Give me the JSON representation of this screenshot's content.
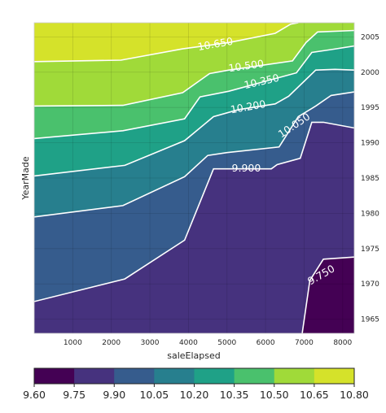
{
  "chart_data": {
    "type": "contour",
    "xlabel": "saleElapsed",
    "ylabel": "YearMade",
    "xlim": [
      0,
      8300
    ],
    "ylim": [
      1963,
      2007
    ],
    "x_ticks": [
      1000,
      2000,
      3000,
      4000,
      5000,
      6000,
      7000,
      8000
    ],
    "y_ticks": [
      1965,
      1970,
      1975,
      1980,
      1985,
      1990,
      1995,
      2000,
      2005
    ],
    "grid": true,
    "colormap": "viridis",
    "levels": [
      9.6,
      9.75,
      9.9,
      10.05,
      10.2,
      10.35,
      10.5,
      10.65,
      10.8
    ],
    "level_colors": [
      "#440154",
      "#46327e",
      "#365c8d",
      "#277f8e",
      "#1fa187",
      "#4ac16d",
      "#a0da39",
      "#d5e22a"
    ],
    "colorbar": {
      "orientation": "horizontal",
      "tick_labels": [
        "9.60",
        "9.75",
        "9.90",
        "10.05",
        "10.20",
        "10.35",
        "10.50",
        "10.65",
        "10.80"
      ]
    },
    "contour_lines": [
      {
        "level": 9.75,
        "label": "9.750",
        "points": [
          [
            6950,
            1963
          ],
          [
            7150,
            1970.5
          ],
          [
            7500,
            1973.5
          ],
          [
            8300,
            1973.8
          ]
        ]
      },
      {
        "level": 9.9,
        "label": "9.900",
        "points": [
          [
            0,
            1967.5
          ],
          [
            2350,
            1970.7
          ],
          [
            3900,
            1976.2
          ],
          [
            4650,
            1986.3
          ],
          [
            6150,
            1986.3
          ],
          [
            6300,
            1986.9
          ],
          [
            6900,
            1987.8
          ],
          [
            7200,
            1992.9
          ],
          [
            7500,
            1992.9
          ],
          [
            8300,
            1992.1
          ]
        ]
      },
      {
        "level": 10.05,
        "label": "10.050",
        "points": [
          [
            0,
            1979.5
          ],
          [
            2300,
            1981.1
          ],
          [
            3900,
            1985.2
          ],
          [
            4500,
            1988.2
          ],
          [
            5000,
            1988.6
          ],
          [
            6350,
            1989.4
          ],
          [
            6850,
            1993.7
          ],
          [
            7300,
            1995.2
          ],
          [
            7700,
            1996.7
          ],
          [
            8300,
            1997.2
          ]
        ]
      },
      {
        "level": 10.2,
        "label": "10.200",
        "points": [
          [
            0,
            1985.3
          ],
          [
            2350,
            1986.8
          ],
          [
            3900,
            1990.3
          ],
          [
            4650,
            1993.7
          ],
          [
            5300,
            1994.7
          ],
          [
            6250,
            1995.5
          ],
          [
            6600,
            1996.6
          ],
          [
            7300,
            2000.3
          ],
          [
            7800,
            2000.4
          ],
          [
            8300,
            2000.3
          ]
        ]
      },
      {
        "level": 10.35,
        "label": "10.350",
        "points": [
          [
            0,
            1990.6
          ],
          [
            2300,
            1991.7
          ],
          [
            3900,
            1993.4
          ],
          [
            4300,
            1996.5
          ],
          [
            5050,
            1997.3
          ],
          [
            6800,
            1999.9
          ],
          [
            7200,
            2002.8
          ],
          [
            7700,
            2003.2
          ],
          [
            8300,
            2003.7
          ]
        ]
      },
      {
        "level": 10.5,
        "label": "10.500",
        "points": [
          [
            0,
            1995.2
          ],
          [
            2300,
            1995.3
          ],
          [
            3850,
            1997.1
          ],
          [
            4550,
            1999.8
          ],
          [
            5050,
            2000.3
          ],
          [
            6700,
            2001.6
          ],
          [
            7050,
            2004.2
          ],
          [
            7350,
            2005.7
          ],
          [
            8300,
            2005.9
          ]
        ]
      },
      {
        "level": 10.65,
        "label": "10.650",
        "points": [
          [
            0,
            2001.5
          ],
          [
            2250,
            2001.7
          ],
          [
            3850,
            2003.3
          ],
          [
            5050,
            2004.2
          ],
          [
            6250,
            2005.5
          ],
          [
            6650,
            2006.8
          ],
          [
            6850,
            2007
          ]
        ]
      }
    ]
  }
}
